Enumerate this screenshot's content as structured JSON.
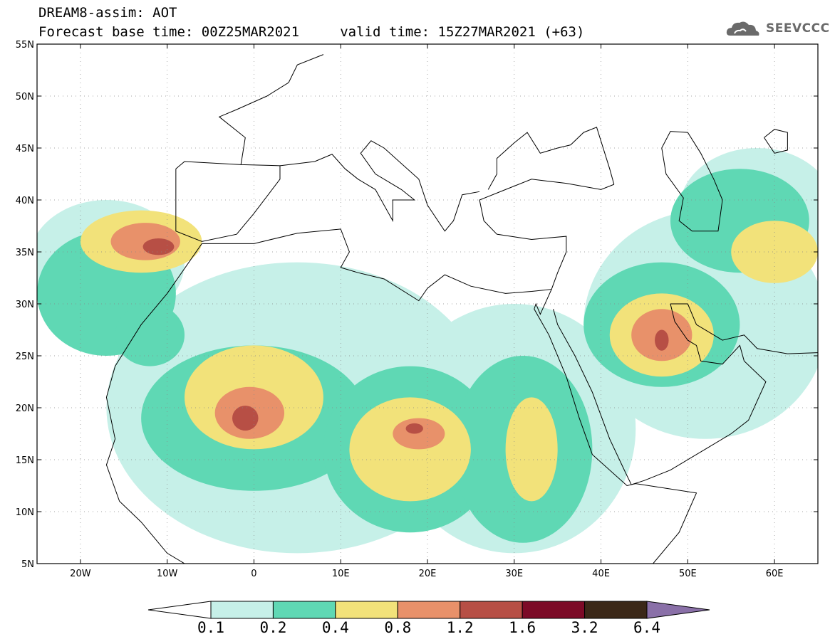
{
  "header": {
    "title_line1": "DREAM8-assim: AOT",
    "title_line2": "Forecast base time: 00Z25MAR2021     valid time: 15Z27MAR2021 (+63)",
    "logo_text": "SEEVCCC"
  },
  "map": {
    "variable": "AOT",
    "lon_range": [
      -25,
      65
    ],
    "lat_range": [
      5,
      55
    ],
    "lat_ticks": [
      "55N",
      "50N",
      "45N",
      "40N",
      "35N",
      "30N",
      "25N",
      "20N",
      "15N",
      "10N",
      "5N"
    ],
    "lon_ticks": [
      "20W",
      "10W",
      "0",
      "10E",
      "20E",
      "30E",
      "40E",
      "50E",
      "60E"
    ],
    "plumes": [
      {
        "level": 1,
        "lon": -17,
        "lat": 34,
        "rx": 9,
        "ry": 6
      },
      {
        "level": 1,
        "lon": 5,
        "lat": 20,
        "rx": 22,
        "ry": 14
      },
      {
        "level": 1,
        "lon": 30,
        "lat": 18,
        "rx": 14,
        "ry": 12
      },
      {
        "level": 1,
        "lon": 52,
        "lat": 28,
        "rx": 14,
        "ry": 11
      },
      {
        "level": 1,
        "lon": 58,
        "lat": 39,
        "rx": 9,
        "ry": 6
      },
      {
        "level": 2,
        "lon": -17,
        "lat": 31,
        "rx": 8,
        "ry": 6
      },
      {
        "level": 2,
        "lon": 0,
        "lat": 19,
        "rx": 13,
        "ry": 7
      },
      {
        "level": 2,
        "lon": 18,
        "lat": 16,
        "rx": 10,
        "ry": 8
      },
      {
        "level": 2,
        "lon": 31,
        "lat": 16,
        "rx": 8,
        "ry": 9
      },
      {
        "level": 2,
        "lon": 47,
        "lat": 28,
        "rx": 9,
        "ry": 6
      },
      {
        "level": 2,
        "lon": 56,
        "lat": 38,
        "rx": 8,
        "ry": 5
      },
      {
        "level": 2,
        "lon": -12,
        "lat": 27,
        "rx": 4,
        "ry": 3
      },
      {
        "level": 3,
        "lon": -13,
        "lat": 36,
        "rx": 7,
        "ry": 3
      },
      {
        "level": 3,
        "lon": 0,
        "lat": 21,
        "rx": 8,
        "ry": 5
      },
      {
        "level": 3,
        "lon": 18,
        "lat": 16,
        "rx": 7,
        "ry": 5
      },
      {
        "level": 3,
        "lon": 32,
        "lat": 16,
        "rx": 3,
        "ry": 5
      },
      {
        "level": 3,
        "lon": 47,
        "lat": 27,
        "rx": 6,
        "ry": 4
      },
      {
        "level": 3,
        "lon": 60,
        "lat": 35,
        "rx": 5,
        "ry": 3
      },
      {
        "level": 4,
        "lon": -12.5,
        "lat": 36,
        "rx": 4,
        "ry": 1.8
      },
      {
        "level": 4,
        "lon": -0.5,
        "lat": 19.5,
        "rx": 4,
        "ry": 2.5
      },
      {
        "level": 4,
        "lon": 19,
        "lat": 17.5,
        "rx": 3,
        "ry": 1.5
      },
      {
        "level": 4,
        "lon": 47,
        "lat": 27,
        "rx": 3.5,
        "ry": 2.5
      },
      {
        "level": 5,
        "lon": -11,
        "lat": 35.5,
        "rx": 1.8,
        "ry": 0.8
      },
      {
        "level": 5,
        "lon": -1,
        "lat": 19,
        "rx": 1.5,
        "ry": 1.2
      },
      {
        "level": 5,
        "lon": 18.5,
        "lat": 18,
        "rx": 1,
        "ry": 0.5
      },
      {
        "level": 5,
        "lon": 47,
        "lat": 26.5,
        "rx": 0.8,
        "ry": 1
      }
    ]
  },
  "colorbar": {
    "levels": [
      "0.1",
      "0.2",
      "0.4",
      "0.8",
      "1.2",
      "1.6",
      "3.2",
      "6.4"
    ],
    "colors": [
      "#ffffff",
      "#c6f0e8",
      "#5fd8b4",
      "#f2e27a",
      "#e8916a",
      "#b74f45",
      "#7c0a27",
      "#3b2818",
      "#8a70a8"
    ]
  }
}
